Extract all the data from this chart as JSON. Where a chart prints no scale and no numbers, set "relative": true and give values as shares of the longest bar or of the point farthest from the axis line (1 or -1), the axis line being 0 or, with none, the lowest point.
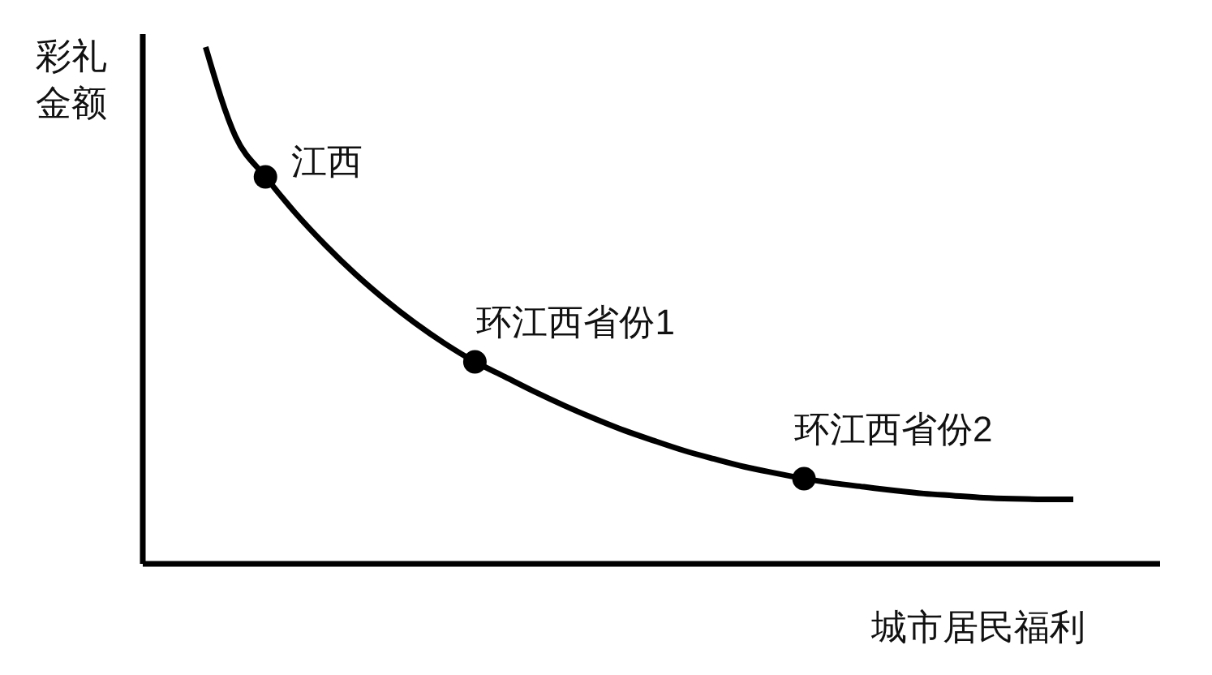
{
  "chart_data": {
    "type": "line",
    "xlabel": "城市居民福利",
    "ylabel": "彩礼金额",
    "relative": true,
    "categories": [
      null,
      null,
      null,
      null,
      null,
      null,
      null,
      null,
      null,
      null,
      null,
      null,
      null,
      null,
      null,
      null,
      null,
      null,
      null,
      null,
      null,
      null,
      null,
      null,
      null,
      null,
      null,
      null,
      null,
      null
    ],
    "series": [
      {
        "color": "#000000",
        "line_style": "solid",
        "marker": "none",
        "values": [
          1.0,
          0.827,
          0.749,
          0.679,
          0.617,
          0.561,
          0.511,
          0.466,
          0.426,
          0.391,
          0.362,
          0.333,
          0.306,
          0.281,
          0.258,
          0.238,
          0.219,
          0.203,
          0.188,
          0.176,
          0.165,
          0.156,
          0.149,
          0.142,
          0.136,
          0.132,
          0.128,
          0.126,
          0.125,
          0.125
        ]
      },
      {
        "name": "江西",
        "color": "#000000",
        "marker": "circle",
        "values": [
          null,
          null,
          0.749,
          null,
          null,
          null,
          null,
          null,
          null,
          null,
          null,
          null,
          null,
          null,
          null,
          null,
          null,
          null,
          null,
          null,
          null,
          null,
          null,
          null,
          null,
          null,
          null,
          null,
          null,
          null
        ]
      },
      {
        "name": "环江西省份1",
        "color": "#000000",
        "marker": "circle",
        "values": [
          null,
          null,
          null,
          null,
          null,
          null,
          null,
          null,
          null,
          0.391,
          null,
          null,
          null,
          null,
          null,
          null,
          null,
          null,
          null,
          null,
          null,
          null,
          null,
          null,
          null,
          null,
          null,
          null,
          null,
          null
        ]
      },
      {
        "name": "环江西省份2",
        "color": "#000000",
        "marker": "circle",
        "values": [
          null,
          null,
          null,
          null,
          null,
          null,
          null,
          null,
          null,
          null,
          null,
          null,
          null,
          null,
          null,
          null,
          null,
          null,
          null,
          null,
          0.165,
          null,
          null,
          null,
          null,
          null,
          null,
          null,
          null,
          null
        ]
      }
    ]
  }
}
